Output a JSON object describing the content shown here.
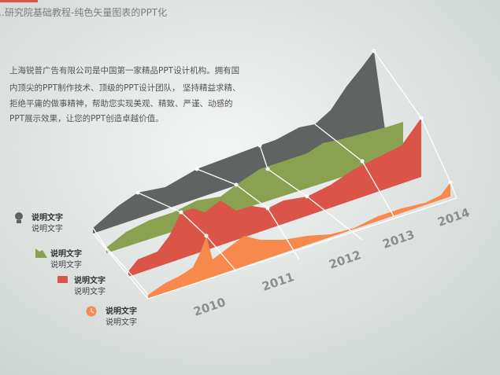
{
  "header": {
    "title": "…研究院基础教程-纯色矢量图表的PPT化"
  },
  "paragraph": [
    "上海锐普广告有限公司是中国第一家精品PPT设计机构。拥有国",
    "内顶尖的PPT制作技术、顶级的PPT设计团队， 坚持精益求精、",
    "拒绝平庸的做事精神，帮助您实现美观、精致、严谨、动感的",
    "PPT展示效果，让您的PPT创造卓越价值。"
  ],
  "legend": [
    {
      "title": "说明文字",
      "text": "说明文字"
    },
    {
      "title": "说明文字",
      "text": "说明文字"
    },
    {
      "title": "说明文字",
      "text": "说明文字"
    },
    {
      "title": "说明文字",
      "text": "说明文字"
    }
  ],
  "years": [
    "2010",
    "2011",
    "2012",
    "2013",
    "2014"
  ]
}
